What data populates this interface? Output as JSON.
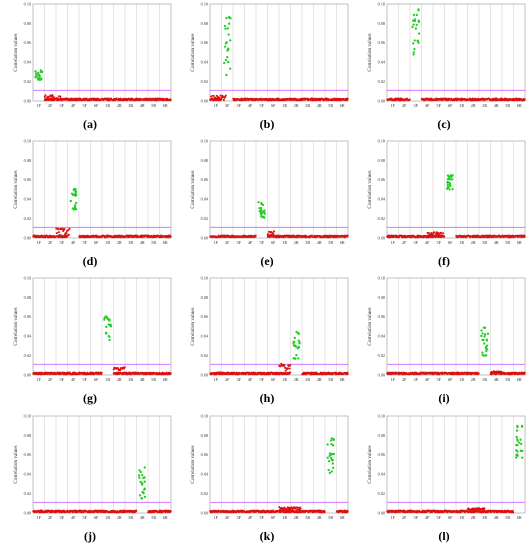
{
  "colors": {
    "below": "#dd1111",
    "above": "#22cc22",
    "threshold": "#cc66ff",
    "grid": "#cccccc"
  },
  "chart_data": [
    {
      "type": "scatter",
      "panel_label": "(a)",
      "ylabel": "Correlation values",
      "ylim": [
        0,
        0.1
      ],
      "yticks": [
        "0.00",
        "0.02",
        "0.04",
        "0.06",
        "0.08",
        "0.10"
      ],
      "xticks": [
        "1F",
        "2F",
        "3F",
        "4F",
        "5F",
        "6F",
        "1R",
        "2R",
        "3R",
        "4R",
        "5R",
        "6R"
      ],
      "threshold": 0.011,
      "grid": true,
      "highlight_group": 0,
      "highlight_range": [
        0.021,
        0.032
      ],
      "red_segment": [
        1,
        2.4,
        0.001,
        0.006
      ]
    },
    {
      "type": "scatter",
      "panel_label": "(b)",
      "ylabel": "Correlation values",
      "ylim": [
        0,
        0.1
      ],
      "yticks": [
        "0.00",
        "0.02",
        "0.04",
        "0.06",
        "0.08",
        "0.10"
      ],
      "xticks": [
        "1F",
        "2F",
        "3F",
        "4F",
        "5F",
        "6F",
        "1R",
        "2R",
        "3R",
        "4R",
        "5R",
        "6R"
      ],
      "threshold": 0.011,
      "grid": true,
      "highlight_group": 1,
      "highlight_range": [
        0.022,
        0.093
      ],
      "red_segment": [
        0,
        1.4,
        0.001,
        0.006
      ]
    },
    {
      "type": "scatter",
      "panel_label": "(c)",
      "ylabel": "Correlation values",
      "ylim": [
        0,
        0.1
      ],
      "yticks": [
        "0.00",
        "0.02",
        "0.04",
        "0.06",
        "0.08",
        "0.10"
      ],
      "xticks": [
        "1F",
        "2F",
        "3F",
        "4F",
        "5F",
        "6F",
        "1R",
        "2R",
        "3R",
        "4R",
        "5R",
        "6R"
      ],
      "threshold": 0.011,
      "grid": true,
      "highlight_group": 2,
      "highlight_range": [
        0.048,
        0.095
      ],
      "red_segment": null
    },
    {
      "type": "scatter",
      "panel_label": "(d)",
      "ylabel": "Correlation values",
      "ylim": [
        0,
        0.1
      ],
      "yticks": [
        "0.00",
        "0.02",
        "0.04",
        "0.06",
        "0.08",
        "0.10"
      ],
      "xticks": [
        "1F",
        "2F",
        "3F",
        "4F",
        "5F",
        "6F",
        "1R",
        "2R",
        "3R",
        "4R",
        "5R",
        "6R"
      ],
      "threshold": 0.011,
      "grid": true,
      "highlight_group": 3,
      "highlight_range": [
        0.028,
        0.053
      ],
      "red_segment": [
        2,
        3.2,
        0.002,
        0.01
      ]
    },
    {
      "type": "scatter",
      "panel_label": "(e)",
      "ylabel": "Correlation values",
      "ylim": [
        0,
        0.1
      ],
      "yticks": [
        "0.00",
        "0.02",
        "0.04",
        "0.06",
        "0.08",
        "0.10"
      ],
      "xticks": [
        "1F",
        "2F",
        "3F",
        "4F",
        "5F",
        "6F",
        "1R",
        "2R",
        "3R",
        "4R",
        "5R",
        "6R"
      ],
      "threshold": 0.011,
      "grid": true,
      "highlight_group": 4,
      "highlight_range": [
        0.02,
        0.037
      ],
      "red_segment": [
        5,
        5.6,
        0.002,
        0.007
      ]
    },
    {
      "type": "scatter",
      "panel_label": "(f)",
      "ylabel": "Correlation values",
      "ylim": [
        0,
        0.1
      ],
      "yticks": [
        "0.00",
        "0.02",
        "0.04",
        "0.06",
        "0.08",
        "0.10"
      ],
      "xticks": [
        "1F",
        "2F",
        "3F",
        "4F",
        "5F",
        "6F",
        "1R",
        "2R",
        "3R",
        "4R",
        "5R",
        "6R"
      ],
      "threshold": 0.011,
      "grid": true,
      "highlight_group": 5,
      "highlight_range": [
        0.05,
        0.065
      ],
      "red_segment": [
        3.5,
        4.9,
        0.002,
        0.006
      ]
    },
    {
      "type": "scatter",
      "panel_label": "(g)",
      "ylabel": "Correlation values",
      "ylim": [
        0,
        0.1
      ],
      "yticks": [
        "0.00",
        "0.02",
        "0.04",
        "0.06",
        "0.08",
        "0.10"
      ],
      "xticks": [
        "1F",
        "2F",
        "3F",
        "4F",
        "5F",
        "6F",
        "1R",
        "2R",
        "3R",
        "4R",
        "5R",
        "6R"
      ],
      "threshold": 0.011,
      "grid": true,
      "highlight_group": 6,
      "highlight_range": [
        0.036,
        0.062
      ],
      "red_segment": [
        7,
        8,
        0.005,
        0.008
      ]
    },
    {
      "type": "scatter",
      "panel_label": "(h)",
      "ylabel": "Correlation values",
      "ylim": [
        0,
        0.1
      ],
      "yticks": [
        "0.00",
        "0.02",
        "0.04",
        "0.06",
        "0.08",
        "0.10"
      ],
      "xticks": [
        "1F",
        "2F",
        "3F",
        "4F",
        "5F",
        "6F",
        "1R",
        "2R",
        "3R",
        "4R",
        "5R",
        "6R"
      ],
      "threshold": 0.011,
      "grid": true,
      "highlight_group": 7,
      "highlight_range": [
        0.015,
        0.045
      ],
      "red_segment": [
        6,
        7,
        0.004,
        0.012
      ]
    },
    {
      "type": "scatter",
      "panel_label": "(i)",
      "ylabel": "Correlation values",
      "ylim": [
        0,
        0.1
      ],
      "yticks": [
        "0.00",
        "0.02",
        "0.04",
        "0.06",
        "0.08",
        "0.10"
      ],
      "xticks": [
        "1F",
        "2F",
        "3F",
        "4F",
        "5F",
        "6F",
        "1R",
        "2R",
        "3R",
        "4R",
        "5R",
        "6R"
      ],
      "threshold": 0.011,
      "grid": true,
      "highlight_group": 8,
      "highlight_range": [
        0.019,
        0.05
      ],
      "red_segment": [
        9,
        10,
        0.002,
        0.004
      ]
    },
    {
      "type": "scatter",
      "panel_label": "(j)",
      "ylabel": "Correlation values",
      "ylim": [
        0,
        0.1
      ],
      "yticks": [
        "0.00",
        "0.02",
        "0.04",
        "0.06",
        "0.08",
        "0.10"
      ],
      "xticks": [
        "1F",
        "2F",
        "3F",
        "4F",
        "5F",
        "6F",
        "1R",
        "2R",
        "3R",
        "4R",
        "5R",
        "6R"
      ],
      "threshold": 0.011,
      "grid": true,
      "highlight_group": 9,
      "highlight_range": [
        0.013,
        0.047
      ],
      "red_segment": null
    },
    {
      "type": "scatter",
      "panel_label": "(k)",
      "ylabel": "Correlation values",
      "ylim": [
        0,
        0.1
      ],
      "yticks": [
        "0.00",
        "0.02",
        "0.04",
        "0.06",
        "0.08",
        "0.10"
      ],
      "xticks": [
        "1F",
        "2F",
        "3F",
        "4F",
        "5F",
        "6F",
        "1R",
        "2R",
        "3R",
        "4R",
        "5R",
        "6R"
      ],
      "threshold": 0.011,
      "grid": true,
      "highlight_group": 10,
      "highlight_range": [
        0.04,
        0.077
      ],
      "red_segment": [
        6,
        7.9,
        0.003,
        0.006
      ]
    },
    {
      "type": "scatter",
      "panel_label": "(l)",
      "ylabel": "Correlation values",
      "ylim": [
        0,
        0.1
      ],
      "yticks": [
        "0.00",
        "0.02",
        "0.04",
        "0.06",
        "0.08",
        "0.10"
      ],
      "xticks": [
        "1F",
        "2F",
        "3F",
        "4F",
        "5F",
        "6F",
        "1R",
        "2R",
        "3R",
        "4R",
        "5R",
        "6R"
      ],
      "threshold": 0.011,
      "grid": true,
      "highlight_group": 11,
      "highlight_range": [
        0.055,
        0.09
      ],
      "red_segment": [
        7,
        8.5,
        0.003,
        0.005
      ]
    }
  ]
}
